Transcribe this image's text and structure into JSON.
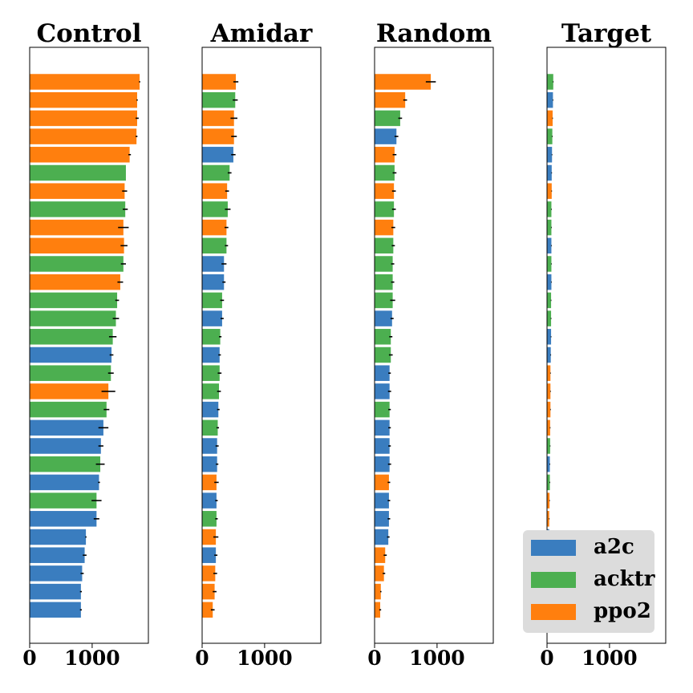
{
  "colors": {
    "a2c": "#3a7dbf",
    "acktr": "#4caf50",
    "ppo2": "#ff7f0e",
    "errbar": "#000000"
  },
  "legend": {
    "placement": "lower-right",
    "items": [
      {
        "label": "a2c",
        "color": "#3a7dbf"
      },
      {
        "label": "acktr",
        "color": "#4caf50"
      },
      {
        "label": "ppo2",
        "color": "#ff7f0e"
      }
    ]
  },
  "chart_data": [
    {
      "type": "bar",
      "orientation": "horizontal",
      "title": "Control",
      "xlim": [
        0,
        1900
      ],
      "xticks": [
        "0",
        "1000"
      ],
      "xtick_values": [
        0,
        1000
      ],
      "series": [
        "ppo2",
        "ppo2",
        "ppo2",
        "ppo2",
        "ppo2",
        "acktr",
        "ppo2",
        "acktr",
        "ppo2",
        "ppo2",
        "acktr",
        "ppo2",
        "acktr",
        "acktr",
        "acktr",
        "a2c",
        "acktr",
        "ppo2",
        "acktr",
        "a2c",
        "a2c",
        "acktr",
        "a2c",
        "acktr",
        "a2c",
        "a2c",
        "a2c",
        "a2c",
        "a2c",
        "a2c"
      ],
      "values": [
        1760,
        1720,
        1720,
        1710,
        1600,
        1540,
        1520,
        1530,
        1500,
        1510,
        1500,
        1450,
        1400,
        1380,
        1330,
        1310,
        1300,
        1260,
        1230,
        1180,
        1140,
        1130,
        1110,
        1070,
        1070,
        900,
        880,
        840,
        820,
        820
      ],
      "errors": [
        10,
        10,
        25,
        15,
        20,
        0,
        40,
        40,
        85,
        55,
        40,
        45,
        30,
        50,
        60,
        30,
        45,
        110,
        45,
        80,
        40,
        70,
        15,
        80,
        45,
        10,
        30,
        25,
        15,
        15
      ]
    },
    {
      "type": "bar",
      "orientation": "horizontal",
      "title": "Amidar",
      "xlim": [
        0,
        1900
      ],
      "xticks": [
        "0",
        "1000"
      ],
      "xtick_values": [
        0,
        1000
      ],
      "series": [
        "ppo2",
        "acktr",
        "ppo2",
        "ppo2",
        "a2c",
        "acktr",
        "ppo2",
        "acktr",
        "ppo2",
        "acktr",
        "a2c",
        "a2c",
        "acktr",
        "a2c",
        "acktr",
        "a2c",
        "acktr",
        "acktr",
        "a2c",
        "acktr",
        "a2c",
        "a2c",
        "ppo2",
        "a2c",
        "acktr",
        "ppo2",
        "a2c",
        "ppo2",
        "ppo2",
        "ppo2"
      ],
      "values": [
        540,
        530,
        510,
        510,
        500,
        440,
        400,
        410,
        390,
        390,
        350,
        350,
        320,
        320,
        290,
        280,
        280,
        270,
        260,
        250,
        240,
        240,
        230,
        230,
        230,
        220,
        220,
        210,
        200,
        170
      ],
      "errors": [
        40,
        40,
        55,
        45,
        35,
        30,
        30,
        45,
        30,
        25,
        40,
        25,
        30,
        25,
        20,
        20,
        30,
        30,
        20,
        20,
        25,
        20,
        35,
        20,
        20,
        40,
        25,
        30,
        30,
        30
      ]
    },
    {
      "type": "bar",
      "orientation": "horizontal",
      "title": "Random",
      "xlim": [
        0,
        1900
      ],
      "xticks": [
        "0",
        "1000"
      ],
      "xtick_values": [
        0,
        1000
      ],
      "series": [
        "ppo2",
        "ppo2",
        "acktr",
        "a2c",
        "ppo2",
        "acktr",
        "ppo2",
        "acktr",
        "ppo2",
        "acktr",
        "acktr",
        "acktr",
        "acktr",
        "a2c",
        "acktr",
        "acktr",
        "a2c",
        "a2c",
        "acktr",
        "a2c",
        "a2c",
        "a2c",
        "ppo2",
        "a2c",
        "a2c",
        "a2c",
        "ppo2",
        "ppo2",
        "ppo2",
        "ppo2"
      ],
      "values": [
        900,
        490,
        410,
        350,
        320,
        320,
        310,
        310,
        300,
        300,
        290,
        290,
        290,
        280,
        260,
        260,
        240,
        240,
        240,
        240,
        240,
        240,
        230,
        230,
        230,
        220,
        170,
        150,
        100,
        90
      ],
      "errors": [
        80,
        30,
        30,
        30,
        30,
        30,
        30,
        30,
        30,
        25,
        25,
        25,
        40,
        25,
        25,
        30,
        20,
        25,
        20,
        20,
        20,
        25,
        20,
        20,
        20,
        20,
        25,
        20,
        10,
        15
      ]
    },
    {
      "type": "bar",
      "orientation": "horizontal",
      "title": "Target",
      "xlim": [
        0,
        1900
      ],
      "xticks": [
        "0",
        "1000"
      ],
      "xtick_values": [
        0,
        1000
      ],
      "series": [
        "acktr",
        "a2c",
        "ppo2",
        "acktr",
        "a2c",
        "a2c",
        "ppo2",
        "acktr",
        "acktr",
        "a2c",
        "acktr",
        "a2c",
        "acktr",
        "acktr",
        "a2c",
        "a2c",
        "ppo2",
        "ppo2",
        "ppo2",
        "ppo2",
        "acktr",
        "a2c",
        "acktr",
        "ppo2",
        "ppo2",
        "a2c",
        "a2c",
        "a2c",
        "ppo2",
        "ppo2"
      ],
      "values": [
        100,
        95,
        90,
        85,
        80,
        75,
        75,
        70,
        70,
        70,
        70,
        70,
        65,
        65,
        65,
        60,
        55,
        55,
        55,
        50,
        50,
        45,
        45,
        40,
        35,
        35,
        30,
        30,
        25,
        20
      ],
      "errors": [
        5,
        5,
        5,
        5,
        5,
        5,
        5,
        5,
        5,
        5,
        5,
        5,
        5,
        5,
        5,
        5,
        5,
        5,
        5,
        5,
        5,
        5,
        5,
        5,
        5,
        5,
        5,
        5,
        5,
        5
      ]
    }
  ]
}
